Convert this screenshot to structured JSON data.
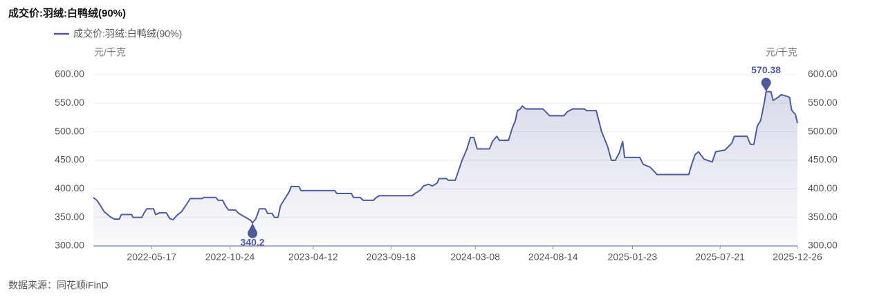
{
  "chart_data": {
    "type": "line",
    "title": "成交价:羽绒:白鸭绒(90%)",
    "y_unit": "元/千克",
    "y2_unit": "元/千克",
    "source": "数据来源：同花顺iFinD",
    "markers": [
      "min",
      "max"
    ],
    "legend": "top-left",
    "grid": true,
    "area": true,
    "xlim": [
      "2022-01-18",
      "2025-12-26"
    ],
    "xticks": [
      "2022-05-17",
      "2022-10-24",
      "2023-04-12",
      "2023-09-18",
      "2024-03-08",
      "2024-08-14",
      "2025-01-23",
      "2025-07-21",
      "2025-12-26"
    ],
    "ylim": [
      300,
      600
    ],
    "yticks": [
      {
        "value": 300,
        "label": "300.00"
      },
      {
        "value": 350,
        "label": "350.00"
      },
      {
        "value": 400,
        "label": "400.00"
      },
      {
        "value": 450,
        "label": "450.00"
      },
      {
        "value": 500,
        "label": "500.00"
      },
      {
        "value": 550,
        "label": "550.00"
      },
      {
        "value": 600,
        "label": "600.00"
      }
    ],
    "y2lim": [
      300,
      600
    ],
    "y2ticks": [
      {
        "value": 300,
        "label": "300.00"
      },
      {
        "value": 350,
        "label": "350.00"
      },
      {
        "value": 400,
        "label": "400.00"
      },
      {
        "value": 450,
        "label": "450.00"
      },
      {
        "value": 500,
        "label": "500.00"
      },
      {
        "value": 550,
        "label": "550.00"
      },
      {
        "value": 600,
        "label": "600.00"
      }
    ],
    "x": [
      "2022-01-18",
      "2022-01-25",
      "2022-02-02",
      "2022-02-09",
      "2022-02-16",
      "2022-02-23",
      "2022-03-02",
      "2022-03-12",
      "2022-03-16",
      "2022-04-06",
      "2022-04-09",
      "2022-04-27",
      "2022-05-01",
      "2022-05-07",
      "2022-05-21",
      "2022-05-25",
      "2022-06-02",
      "2022-06-16",
      "2022-06-23",
      "2022-06-30",
      "2022-07-07",
      "2022-07-17",
      "2022-07-25",
      "2022-08-04",
      "2022-08-28",
      "2022-09-01",
      "2022-09-25",
      "2022-09-30",
      "2022-10-09",
      "2022-10-15",
      "2022-10-21",
      "2022-11-04",
      "2022-11-11",
      "2022-11-25",
      "2022-12-05",
      "2022-12-09",
      "2022-12-16",
      "2022-12-23",
      "2023-01-04",
      "2023-01-09",
      "2023-01-18",
      "2023-01-23",
      "2023-01-30",
      "2023-02-04",
      "2023-02-11",
      "2023-02-22",
      "2023-02-26",
      "2023-03-14",
      "2023-03-18",
      "2023-05-26",
      "2023-05-30",
      "2023-06-29",
      "2023-07-03",
      "2023-07-17",
      "2023-07-23",
      "2023-08-13",
      "2023-08-19",
      "2023-08-25",
      "2023-10-31",
      "2023-11-06",
      "2023-11-17",
      "2023-11-23",
      "2023-12-04",
      "2023-12-11",
      "2023-12-21",
      "2023-12-25",
      "2024-01-09",
      "2024-01-13",
      "2024-01-27",
      "2024-02-02",
      "2024-02-10",
      "2024-02-20",
      "2024-02-27",
      "2024-03-05",
      "2024-03-12",
      "2024-04-06",
      "2024-04-12",
      "2024-04-21",
      "2024-04-26",
      "2024-05-15",
      "2024-05-22",
      "2024-05-29",
      "2024-06-02",
      "2024-06-08",
      "2024-06-12",
      "2024-06-19",
      "2024-07-24",
      "2024-08-07",
      "2024-09-05",
      "2024-09-12",
      "2024-09-23",
      "2024-10-17",
      "2024-10-21",
      "2024-11-10",
      "2024-11-16",
      "2024-11-21",
      "2024-12-03",
      "2024-12-11",
      "2024-12-19",
      "2024-12-27",
      "2025-01-03",
      "2025-01-07",
      "2025-02-07",
      "2025-02-14",
      "2025-02-28",
      "2025-03-09",
      "2025-03-14",
      "2025-05-18",
      "2025-05-24",
      "2025-05-31",
      "2025-06-07",
      "2025-06-18",
      "2025-07-05",
      "2025-07-12",
      "2025-07-31",
      "2025-08-14",
      "2025-08-19",
      "2025-09-14",
      "2025-09-21",
      "2025-09-28",
      "2025-10-05",
      "2025-10-12",
      "2025-10-19",
      "2025-10-23",
      "2025-11-02",
      "2025-11-06",
      "2025-11-16",
      "2025-11-23",
      "2025-12-05",
      "2025-12-10",
      "2025-12-14",
      "2025-12-22",
      "2025-12-26"
    ],
    "series": [
      {
        "name": "成交价:羽绒:白鸭绒(90%)",
        "color": "#4e5a9e",
        "axis": "y",
        "values": [
          385,
          380,
          370,
          360,
          355,
          350,
          347,
          347,
          355,
          355,
          350,
          350,
          357,
          365,
          365,
          355,
          358,
          358,
          348,
          346,
          353,
          360,
          370,
          383,
          383,
          385,
          385,
          380,
          380,
          370,
          363,
          363,
          357,
          350,
          345,
          340.2,
          348,
          365,
          365,
          357,
          357,
          350,
          350,
          370,
          380,
          395,
          404,
          404,
          397,
          397,
          392,
          392,
          385,
          385,
          380,
          380,
          385,
          388,
          388,
          392,
          398,
          405,
          408,
          405,
          410,
          418,
          418,
          415,
          415,
          430,
          450,
          470,
          490,
          490,
          470,
          470,
          483,
          492,
          485,
          485,
          505,
          520,
          537,
          540,
          545,
          540,
          540,
          528,
          528,
          535,
          540,
          540,
          537,
          537,
          517,
          500,
          475,
          450,
          450,
          463,
          483,
          455,
          455,
          443,
          438,
          430,
          425,
          425,
          443,
          460,
          465,
          452,
          447,
          465,
          468,
          480,
          492,
          492,
          478,
          478,
          510,
          520,
          550,
          570.38,
          570,
          555,
          560,
          565,
          562,
          560,
          538,
          530,
          515
        ]
      }
    ]
  }
}
